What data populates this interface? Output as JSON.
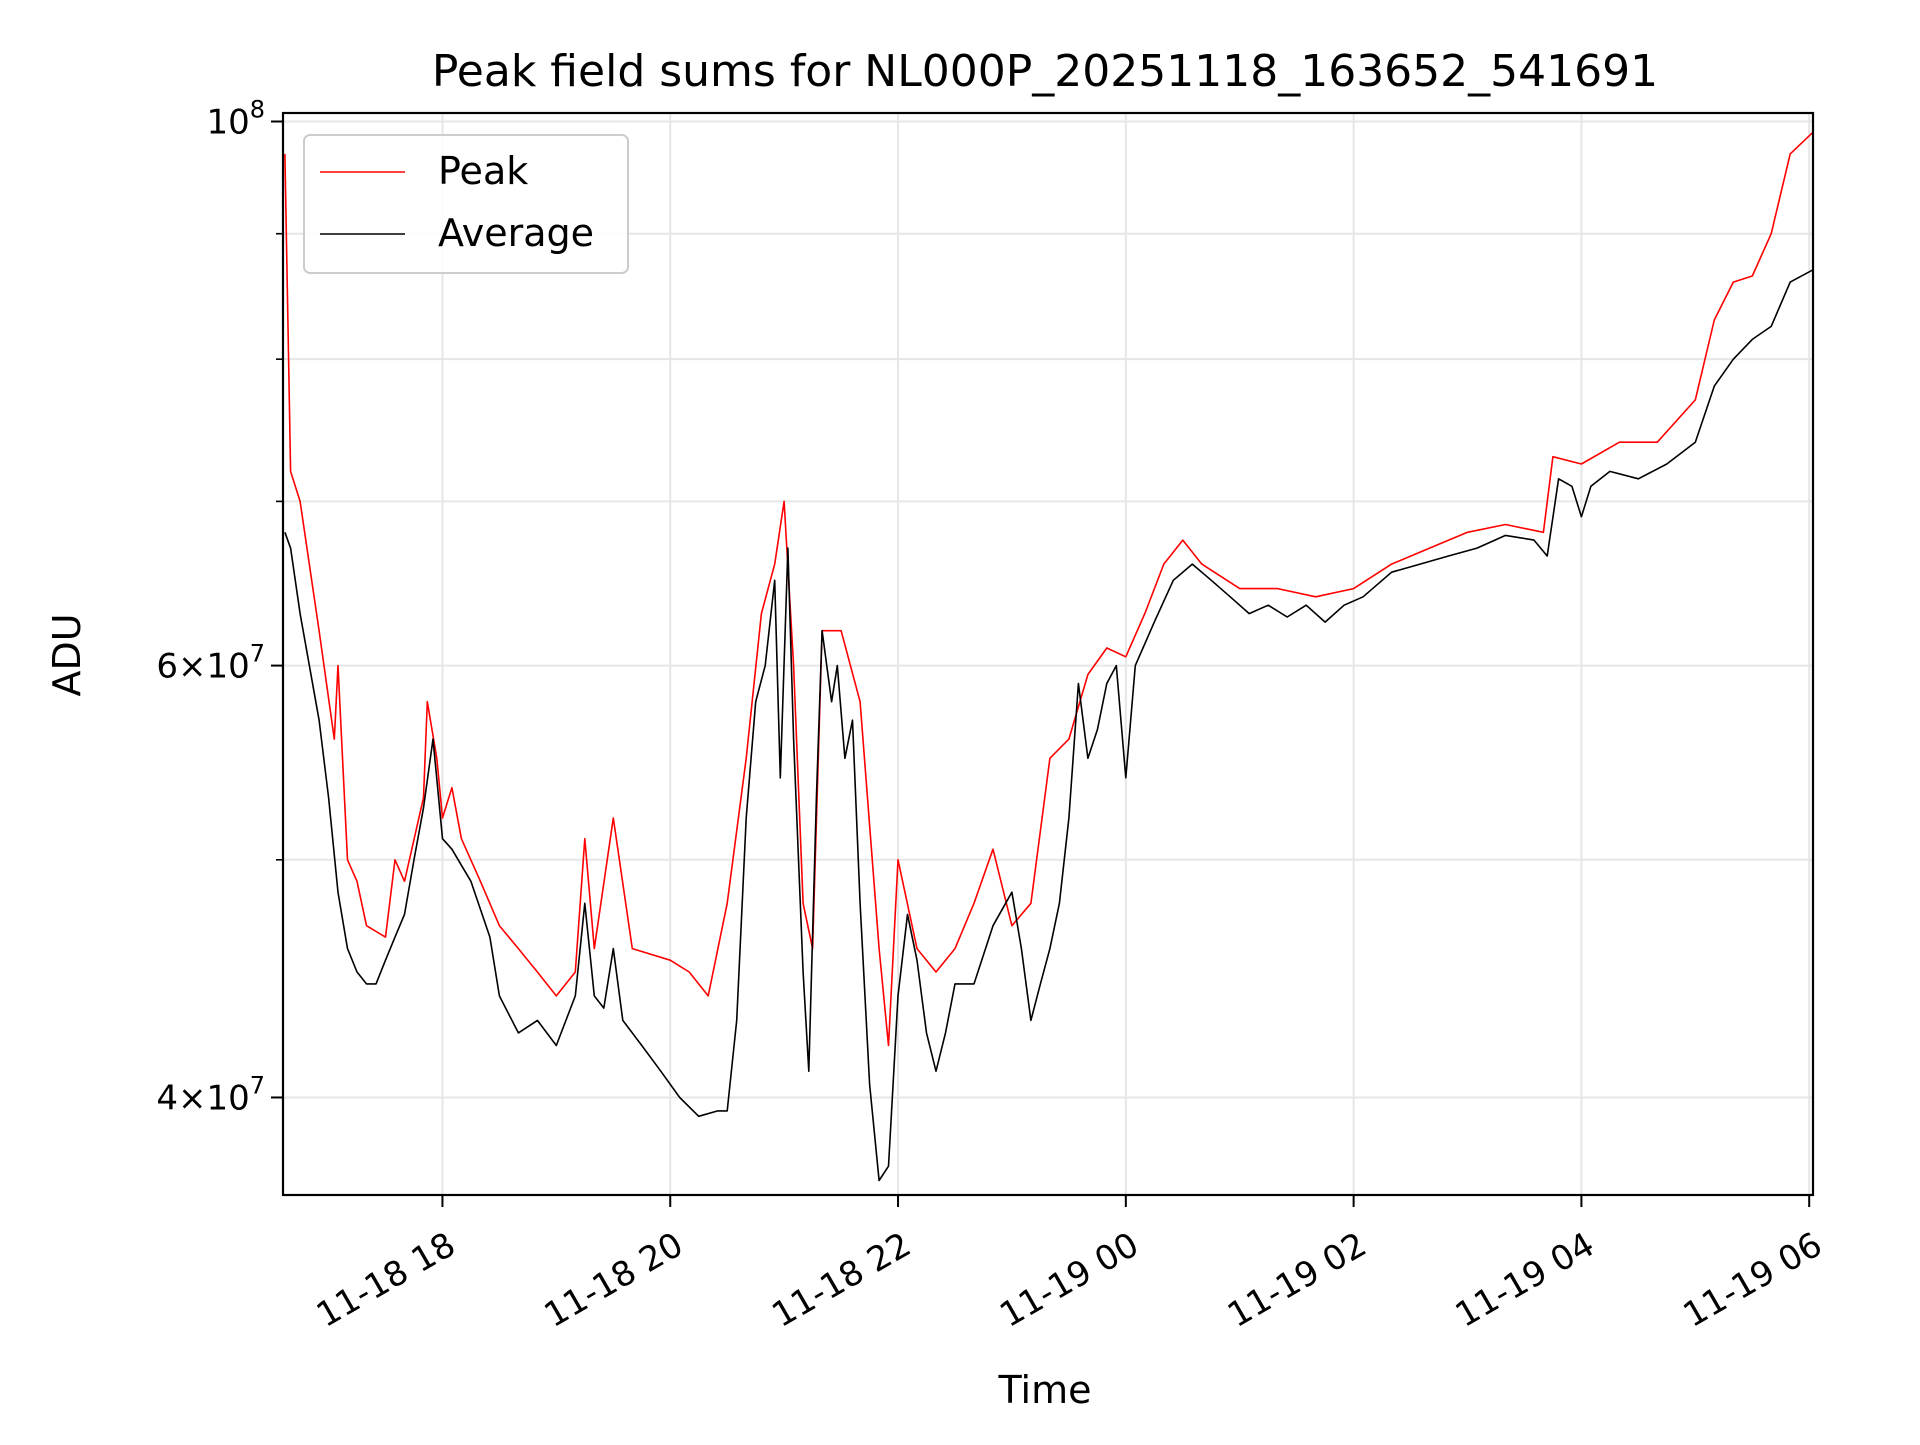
{
  "chart_data": {
    "type": "line",
    "title": "Peak field sums for NL000P_20251118_163652_541691",
    "xlabel": "Time",
    "ylabel": "ADU",
    "yscale": "log",
    "grid": true,
    "legend_placement": "top-left",
    "xlim": [
      "2025-11-18 16:36",
      "2025-11-19 06:02"
    ],
    "ylim": [
      36500000,
      100800000
    ],
    "x_ticks": [
      "11-18 18",
      "11-18 20",
      "11-18 22",
      "11-19 00",
      "11-19 02",
      "11-19 04",
      "11-19 06"
    ],
    "y_ticks": [
      {
        "base": "10",
        "exp": "8"
      },
      {
        "coef": "6",
        "base": "10",
        "exp": "7"
      },
      {
        "coef": "4",
        "base": "10",
        "exp": "7"
      }
    ],
    "series": [
      {
        "name": "Peak",
        "color": "#ff0000",
        "points": [
          [
            "2025-11-18 16:37",
            97000000
          ],
          [
            "2025-11-18 16:40",
            72000000
          ],
          [
            "2025-11-18 16:45",
            70000000
          ],
          [
            "2025-11-18 16:55",
            62000000
          ],
          [
            "2025-11-18 17:03",
            56000000
          ],
          [
            "2025-11-18 17:05",
            60000000
          ],
          [
            "2025-11-18 17:10",
            50000000
          ],
          [
            "2025-11-18 17:15",
            49000000
          ],
          [
            "2025-11-18 17:20",
            47000000
          ],
          [
            "2025-11-18 17:30",
            46500000
          ],
          [
            "2025-11-18 17:35",
            50000000
          ],
          [
            "2025-11-18 17:40",
            49000000
          ],
          [
            "2025-11-18 17:50",
            53000000
          ],
          [
            "2025-11-18 17:52",
            58000000
          ],
          [
            "2025-11-18 17:57",
            55000000
          ],
          [
            "2025-11-18 18:00",
            52000000
          ],
          [
            "2025-11-18 18:05",
            53500000
          ],
          [
            "2025-11-18 18:10",
            51000000
          ],
          [
            "2025-11-18 18:20",
            49000000
          ],
          [
            "2025-11-18 18:30",
            47000000
          ],
          [
            "2025-11-18 18:40",
            46000000
          ],
          [
            "2025-11-18 18:50",
            45000000
          ],
          [
            "2025-11-18 19:00",
            44000000
          ],
          [
            "2025-11-18 19:10",
            45000000
          ],
          [
            "2025-11-18 19:15",
            51000000
          ],
          [
            "2025-11-18 19:20",
            46000000
          ],
          [
            "2025-11-18 19:30",
            52000000
          ],
          [
            "2025-11-18 19:40",
            46000000
          ],
          [
            "2025-11-18 20:00",
            45500000
          ],
          [
            "2025-11-18 20:10",
            45000000
          ],
          [
            "2025-11-18 20:20",
            44000000
          ],
          [
            "2025-11-18 20:30",
            48000000
          ],
          [
            "2025-11-18 20:40",
            55000000
          ],
          [
            "2025-11-18 20:48",
            63000000
          ],
          [
            "2025-11-18 20:55",
            66000000
          ],
          [
            "2025-11-18 21:00",
            70000000
          ],
          [
            "2025-11-18 21:05",
            60000000
          ],
          [
            "2025-11-18 21:10",
            48000000
          ],
          [
            "2025-11-18 21:15",
            46000000
          ],
          [
            "2025-11-18 21:20",
            62000000
          ],
          [
            "2025-11-18 21:30",
            62000000
          ],
          [
            "2025-11-18 21:40",
            58000000
          ],
          [
            "2025-11-18 21:50",
            46000000
          ],
          [
            "2025-11-18 21:55",
            42000000
          ],
          [
            "2025-11-18 22:00",
            50000000
          ],
          [
            "2025-11-18 22:10",
            46000000
          ],
          [
            "2025-11-18 22:20",
            45000000
          ],
          [
            "2025-11-18 22:30",
            46000000
          ],
          [
            "2025-11-18 22:40",
            48000000
          ],
          [
            "2025-11-18 22:50",
            50500000
          ],
          [
            "2025-11-18 23:00",
            47000000
          ],
          [
            "2025-11-18 23:10",
            48000000
          ],
          [
            "2025-11-18 23:20",
            55000000
          ],
          [
            "2025-11-18 23:30",
            56000000
          ],
          [
            "2025-11-18 23:40",
            59500000
          ],
          [
            "2025-11-18 23:50",
            61000000
          ],
          [
            "2025-11-19 00:00",
            60500000
          ],
          [
            "2025-11-19 00:10",
            63000000
          ],
          [
            "2025-11-19 00:20",
            66000000
          ],
          [
            "2025-11-19 00:30",
            67500000
          ],
          [
            "2025-11-19 00:40",
            66000000
          ],
          [
            "2025-11-19 01:00",
            64500000
          ],
          [
            "2025-11-19 01:20",
            64500000
          ],
          [
            "2025-11-19 01:40",
            64000000
          ],
          [
            "2025-11-19 02:00",
            64500000
          ],
          [
            "2025-11-19 02:20",
            66000000
          ],
          [
            "2025-11-19 02:40",
            67000000
          ],
          [
            "2025-11-19 03:00",
            68000000
          ],
          [
            "2025-11-19 03:20",
            68500000
          ],
          [
            "2025-11-19 03:40",
            68000000
          ],
          [
            "2025-11-19 03:45",
            73000000
          ],
          [
            "2025-11-19 04:00",
            72500000
          ],
          [
            "2025-11-19 04:20",
            74000000
          ],
          [
            "2025-11-19 04:40",
            74000000
          ],
          [
            "2025-11-19 05:00",
            77000000
          ],
          [
            "2025-11-19 05:10",
            83000000
          ],
          [
            "2025-11-19 05:20",
            86000000
          ],
          [
            "2025-11-19 05:30",
            86500000
          ],
          [
            "2025-11-19 05:40",
            90000000
          ],
          [
            "2025-11-19 05:50",
            97000000
          ],
          [
            "2025-11-19 06:02",
            99000000
          ]
        ]
      },
      {
        "name": "Average",
        "color": "#000000",
        "points": [
          [
            "2025-11-18 16:37",
            68000000
          ],
          [
            "2025-11-18 16:40",
            67000000
          ],
          [
            "2025-11-18 16:45",
            63000000
          ],
          [
            "2025-11-18 16:55",
            57000000
          ],
          [
            "2025-11-18 17:00",
            53000000
          ],
          [
            "2025-11-18 17:05",
            48500000
          ],
          [
            "2025-11-18 17:10",
            46000000
          ],
          [
            "2025-11-18 17:15",
            45000000
          ],
          [
            "2025-11-18 17:20",
            44500000
          ],
          [
            "2025-11-18 17:25",
            44500000
          ],
          [
            "2025-11-18 17:30",
            45500000
          ],
          [
            "2025-11-18 17:35",
            46500000
          ],
          [
            "2025-11-18 17:40",
            47500000
          ],
          [
            "2025-11-18 17:45",
            50000000
          ],
          [
            "2025-11-18 17:50",
            52500000
          ],
          [
            "2025-11-18 17:55",
            56000000
          ],
          [
            "2025-11-18 18:00",
            51000000
          ],
          [
            "2025-11-18 18:05",
            50500000
          ],
          [
            "2025-11-18 18:15",
            49000000
          ],
          [
            "2025-11-18 18:25",
            46500000
          ],
          [
            "2025-11-18 18:30",
            44000000
          ],
          [
            "2025-11-18 18:40",
            42500000
          ],
          [
            "2025-11-18 18:50",
            43000000
          ],
          [
            "2025-11-18 19:00",
            42000000
          ],
          [
            "2025-11-18 19:10",
            44000000
          ],
          [
            "2025-11-18 19:15",
            48000000
          ],
          [
            "2025-11-18 19:20",
            44000000
          ],
          [
            "2025-11-18 19:25",
            43500000
          ],
          [
            "2025-11-18 19:30",
            46000000
          ],
          [
            "2025-11-18 19:35",
            43000000
          ],
          [
            "2025-11-18 19:45",
            42000000
          ],
          [
            "2025-11-18 19:55",
            41000000
          ],
          [
            "2025-11-18 20:05",
            40000000
          ],
          [
            "2025-11-18 20:15",
            39300000
          ],
          [
            "2025-11-18 20:25",
            39500000
          ],
          [
            "2025-11-18 20:30",
            39500000
          ],
          [
            "2025-11-18 20:35",
            43000000
          ],
          [
            "2025-11-18 20:40",
            52000000
          ],
          [
            "2025-11-18 20:45",
            58000000
          ],
          [
            "2025-11-18 20:50",
            60000000
          ],
          [
            "2025-11-18 20:55",
            65000000
          ],
          [
            "2025-11-18 20:58",
            54000000
          ],
          [
            "2025-11-18 21:02",
            67000000
          ],
          [
            "2025-11-18 21:05",
            56000000
          ],
          [
            "2025-11-18 21:10",
            45000000
          ],
          [
            "2025-11-18 21:13",
            41000000
          ],
          [
            "2025-11-18 21:17",
            53000000
          ],
          [
            "2025-11-18 21:20",
            62000000
          ],
          [
            "2025-11-18 21:25",
            58000000
          ],
          [
            "2025-11-18 21:28",
            60000000
          ],
          [
            "2025-11-18 21:32",
            55000000
          ],
          [
            "2025-11-18 21:36",
            57000000
          ],
          [
            "2025-11-18 21:40",
            48000000
          ],
          [
            "2025-11-18 21:45",
            40500000
          ],
          [
            "2025-11-18 21:50",
            37000000
          ],
          [
            "2025-11-18 21:55",
            37500000
          ],
          [
            "2025-11-18 22:00",
            44000000
          ],
          [
            "2025-11-18 22:05",
            47500000
          ],
          [
            "2025-11-18 22:10",
            45500000
          ],
          [
            "2025-11-18 22:15",
            42500000
          ],
          [
            "2025-11-18 22:20",
            41000000
          ],
          [
            "2025-11-18 22:25",
            42500000
          ],
          [
            "2025-11-18 22:30",
            44500000
          ],
          [
            "2025-11-18 22:40",
            44500000
          ],
          [
            "2025-11-18 22:50",
            47000000
          ],
          [
            "2025-11-18 23:00",
            48500000
          ],
          [
            "2025-11-18 23:05",
            46000000
          ],
          [
            "2025-11-18 23:10",
            43000000
          ],
          [
            "2025-11-18 23:15",
            44500000
          ],
          [
            "2025-11-18 23:20",
            46000000
          ],
          [
            "2025-11-18 23:25",
            48000000
          ],
          [
            "2025-11-18 23:30",
            52000000
          ],
          [
            "2025-11-18 23:35",
            59000000
          ],
          [
            "2025-11-18 23:40",
            55000000
          ],
          [
            "2025-11-18 23:45",
            56500000
          ],
          [
            "2025-11-18 23:50",
            59000000
          ],
          [
            "2025-11-18 23:55",
            60000000
          ],
          [
            "2025-11-19 00:00",
            54000000
          ],
          [
            "2025-11-19 00:05",
            60000000
          ],
          [
            "2025-11-19 00:15",
            62500000
          ],
          [
            "2025-11-19 00:25",
            65000000
          ],
          [
            "2025-11-19 00:35",
            66000000
          ],
          [
            "2025-11-19 00:45",
            65000000
          ],
          [
            "2025-11-19 00:55",
            64000000
          ],
          [
            "2025-11-19 01:05",
            63000000
          ],
          [
            "2025-11-19 01:15",
            63500000
          ],
          [
            "2025-11-19 01:25",
            62800000
          ],
          [
            "2025-11-19 01:35",
            63500000
          ],
          [
            "2025-11-19 01:45",
            62500000
          ],
          [
            "2025-11-19 01:55",
            63500000
          ],
          [
            "2025-11-19 02:05",
            64000000
          ],
          [
            "2025-11-19 02:20",
            65500000
          ],
          [
            "2025-11-19 02:35",
            66000000
          ],
          [
            "2025-11-19 02:50",
            66500000
          ],
          [
            "2025-11-19 03:05",
            67000000
          ],
          [
            "2025-11-19 03:20",
            67800000
          ],
          [
            "2025-11-19 03:35",
            67500000
          ],
          [
            "2025-11-19 03:42",
            66500000
          ],
          [
            "2025-11-19 03:48",
            71500000
          ],
          [
            "2025-11-19 03:55",
            71000000
          ],
          [
            "2025-11-19 04:00",
            69000000
          ],
          [
            "2025-11-19 04:05",
            71000000
          ],
          [
            "2025-11-19 04:15",
            72000000
          ],
          [
            "2025-11-19 04:30",
            71500000
          ],
          [
            "2025-11-19 04:45",
            72500000
          ],
          [
            "2025-11-19 05:00",
            74000000
          ],
          [
            "2025-11-19 05:10",
            78000000
          ],
          [
            "2025-11-19 05:20",
            80000000
          ],
          [
            "2025-11-19 05:30",
            81500000
          ],
          [
            "2025-11-19 05:40",
            82500000
          ],
          [
            "2025-11-19 05:50",
            86000000
          ],
          [
            "2025-11-19 06:02",
            87000000
          ]
        ]
      }
    ]
  }
}
